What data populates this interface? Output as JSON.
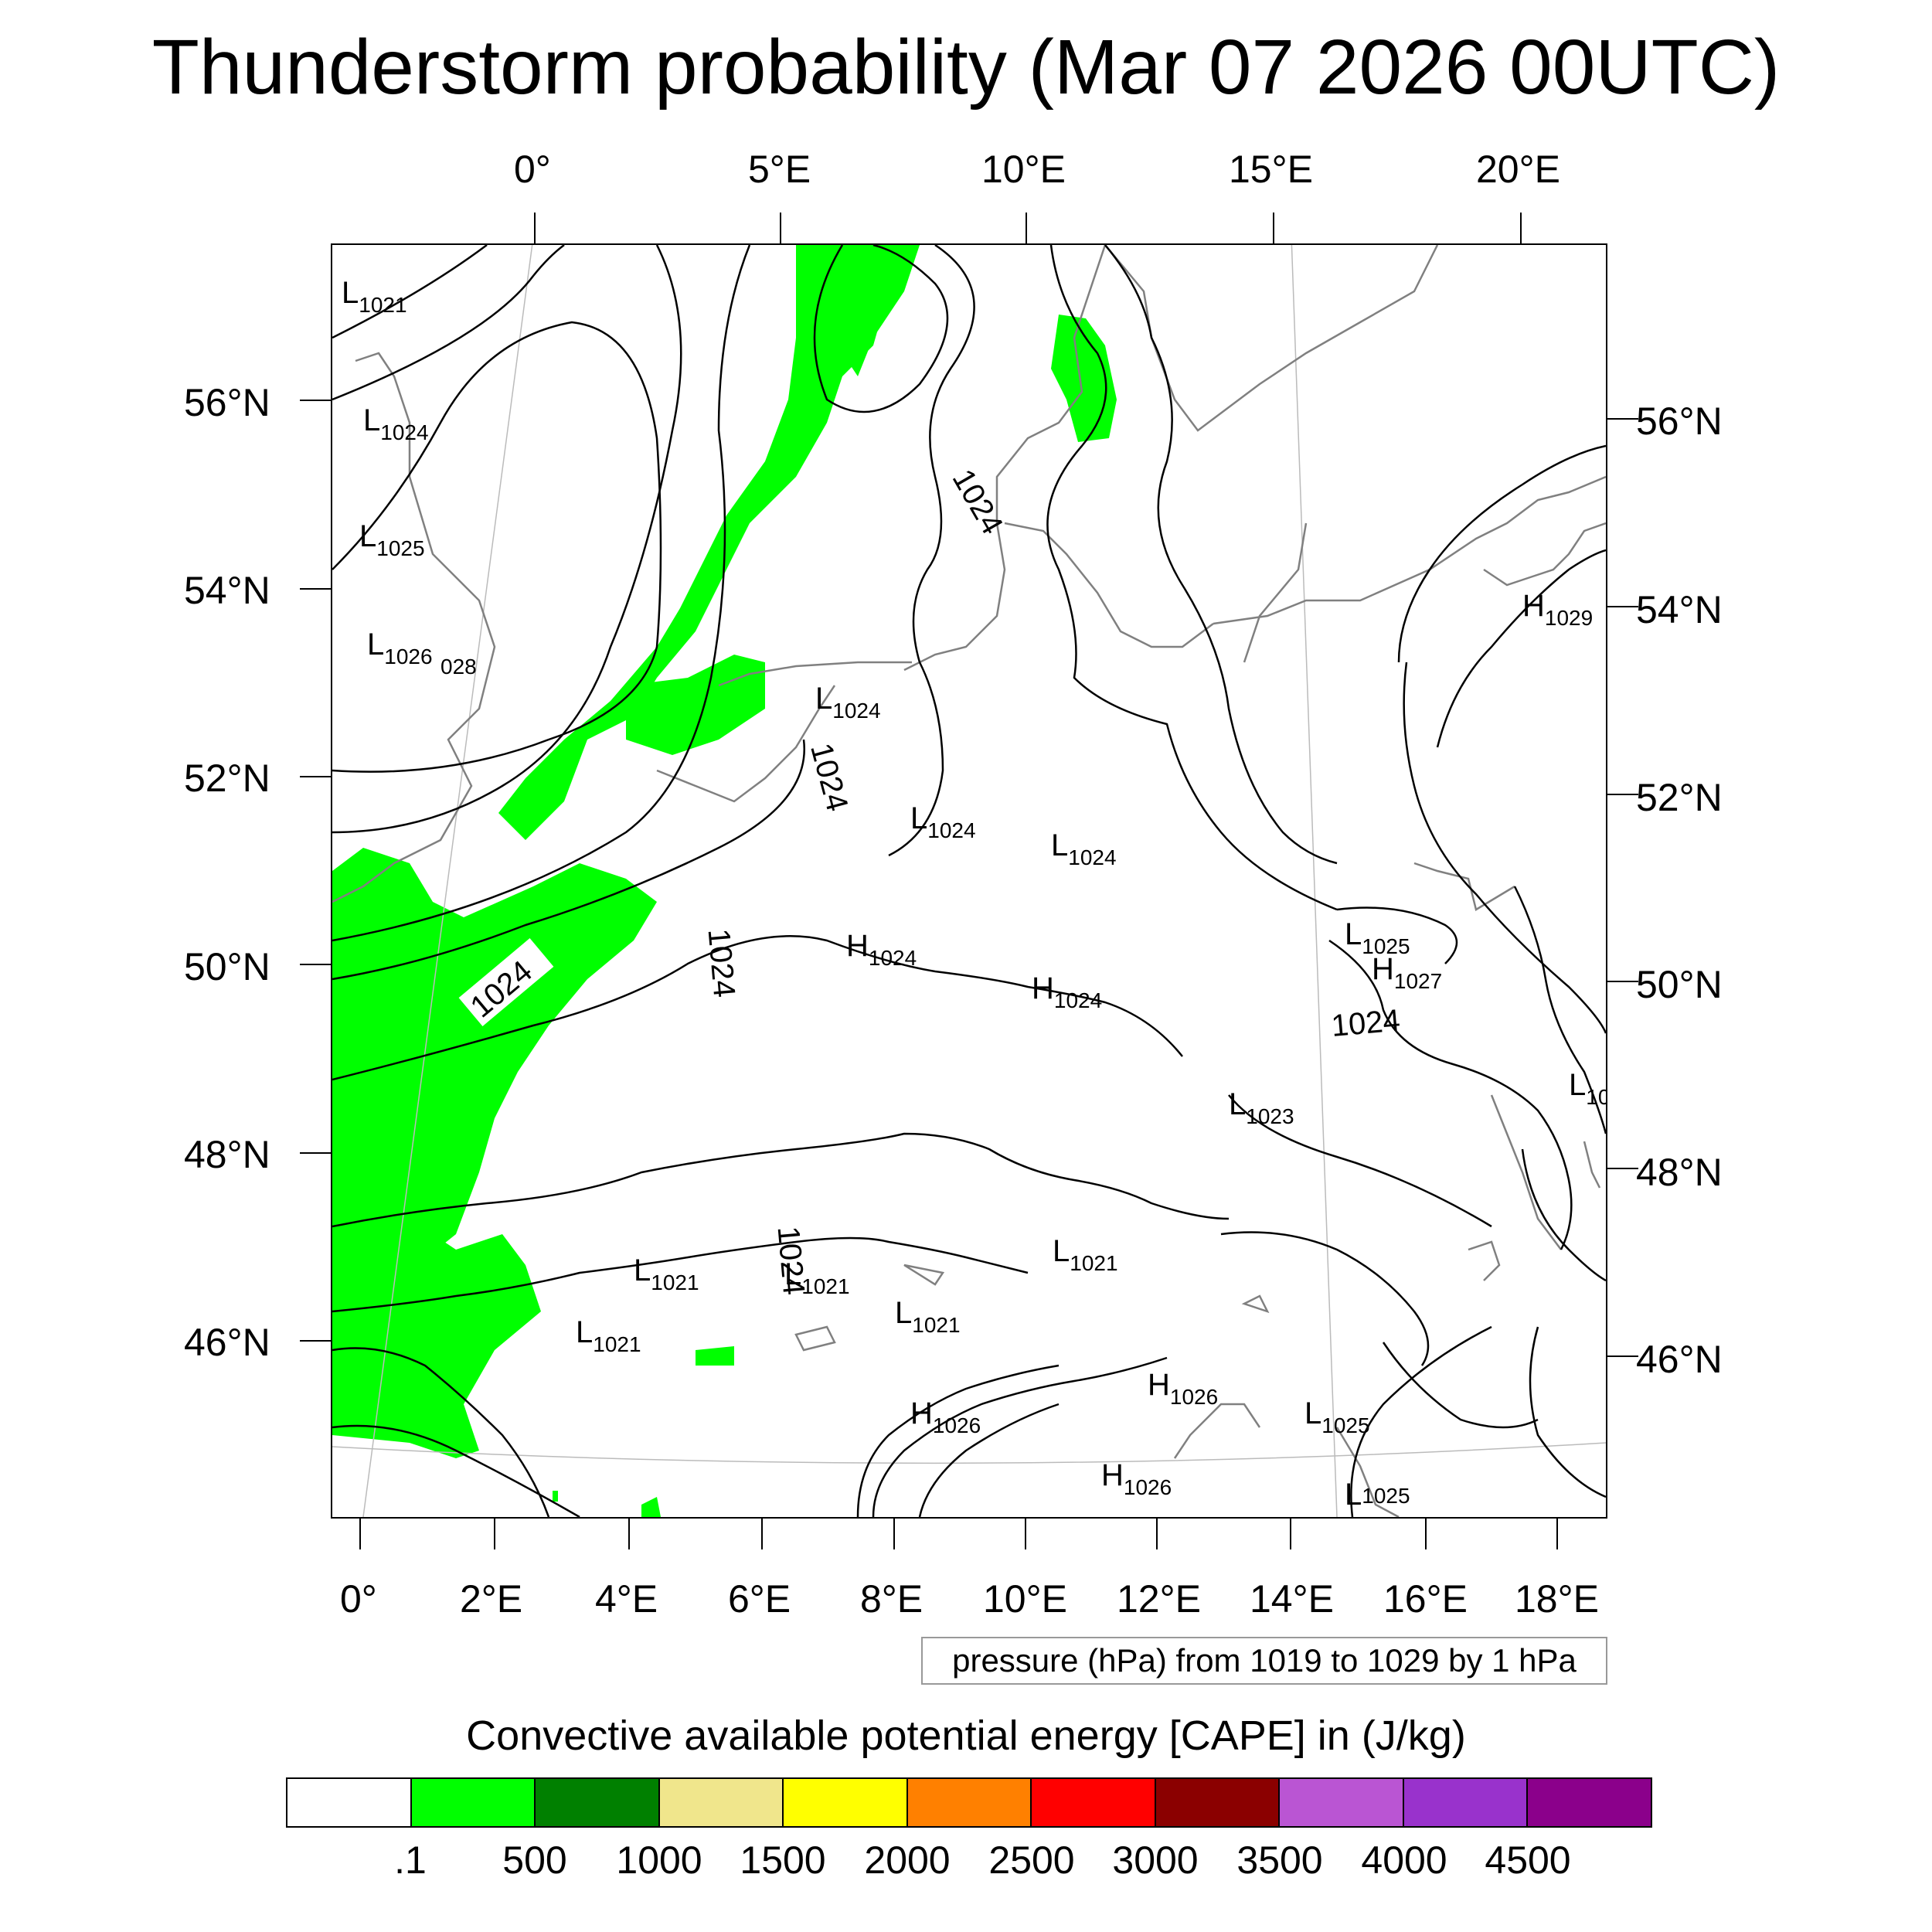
{
  "title": "Thunderstorm probability (Mar 07 2026 00UTC)",
  "top_lon_labels": [
    "0°",
    "5°E",
    "10°E",
    "15°E",
    "20°E"
  ],
  "left_lat_labels": [
    "56°N",
    "54°N",
    "52°N",
    "50°N",
    "48°N",
    "46°N"
  ],
  "right_lat_labels": [
    "56°N",
    "54°N",
    "52°N",
    "50°N",
    "48°N",
    "46°N"
  ],
  "bottom_lon_labels": [
    "0°",
    "2°E",
    "4°E",
    "6°E",
    "8°E",
    "10°E",
    "12°E",
    "14°E",
    "16°E",
    "18°E"
  ],
  "contour_labels": [
    "1024",
    "1024",
    "1024",
    "1024",
    "1024",
    "1024"
  ],
  "pressure_centers": [
    {
      "type": "L",
      "value": "1021"
    },
    {
      "type": "L",
      "value": "1024"
    },
    {
      "type": "L",
      "value": "1025"
    },
    {
      "type": "L",
      "value": "1026"
    },
    {
      "type": "",
      "value": "028"
    },
    {
      "type": "L",
      "value": "1024"
    },
    {
      "type": "L",
      "value": "1024"
    },
    {
      "type": "L",
      "value": "1024"
    },
    {
      "type": "H",
      "value": "1024"
    },
    {
      "type": "H",
      "value": "1024"
    },
    {
      "type": "L",
      "value": "1025"
    },
    {
      "type": "H",
      "value": "1027"
    },
    {
      "type": "H",
      "value": "1029"
    },
    {
      "type": "L",
      "value": "10"
    },
    {
      "type": "L",
      "value": "1023"
    },
    {
      "type": "L",
      "value": "1021"
    },
    {
      "type": "L",
      "value": "1021"
    },
    {
      "type": "L",
      "value": "1021"
    },
    {
      "type": "L",
      "value": "1021"
    },
    {
      "type": "L",
      "value": "1021"
    },
    {
      "type": "H",
      "value": "1026"
    },
    {
      "type": "H",
      "value": "1026"
    },
    {
      "type": "H",
      "value": "1026"
    },
    {
      "type": "L",
      "value": "1025"
    },
    {
      "type": "L",
      "value": "1025"
    }
  ],
  "contour_info": "pressure (hPa) from 1019 to 1029 by 1 hPa",
  "colorbar": {
    "title": "Convective available potential energy [CAPE] in (J/kg)",
    "colors": [
      "#ffffff",
      "#00ff00",
      "#008000",
      "#f0e68c",
      "#ffff00",
      "#ff8000",
      "#ff0000",
      "#8b0000",
      "#ba55d3",
      "#9932cc",
      "#8b008b"
    ],
    "tick_labels": [
      ".1",
      "500",
      "1000",
      "1500",
      "2000",
      "2500",
      "3000",
      "3500",
      "4000",
      "4500"
    ]
  },
  "colors": {
    "cape_low": "#00ff00",
    "contour": "#000000",
    "coastline": "#808080"
  }
}
